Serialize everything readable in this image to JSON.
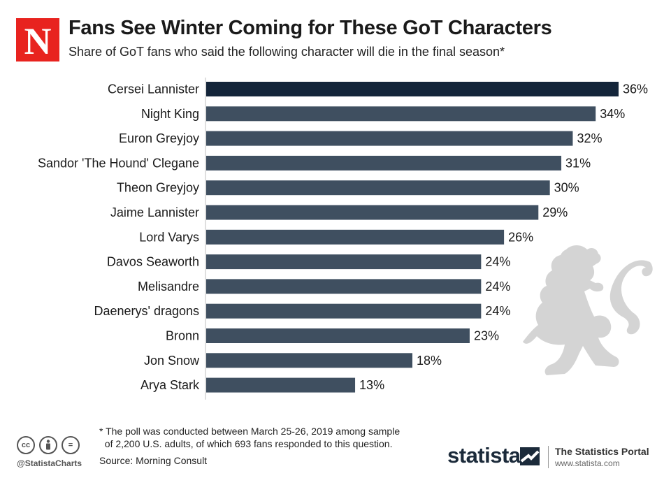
{
  "header": {
    "logo_letter": "N",
    "title": "Fans See Winter Coming for These GoT Characters",
    "subtitle": "Share of GoT fans who said the following character will die in the final season*"
  },
  "chart_data": {
    "type": "bar",
    "orientation": "horizontal",
    "title": "Fans See Winter Coming for These GoT Characters",
    "subtitle": "Share of GoT fans who said the following character will die in the final season*",
    "categories": [
      "Cersei Lannister",
      "Night King",
      "Euron Greyjoy",
      "Sandor 'The Hound' Clegane",
      "Theon Greyjoy",
      "Jaime Lannister",
      "Lord Varys",
      "Davos Seaworth",
      "Melisandre",
      "Daenerys' dragons",
      "Bronn",
      "Jon Snow",
      "Arya Stark"
    ],
    "values": [
      36,
      34,
      32,
      31,
      30,
      29,
      26,
      24,
      24,
      24,
      23,
      18,
      13
    ],
    "value_labels": [
      "36%",
      "34%",
      "32%",
      "31%",
      "30%",
      "29%",
      "26%",
      "24%",
      "24%",
      "24%",
      "23%",
      "18%",
      "13%"
    ],
    "unit": "%",
    "xlim": [
      0,
      36
    ],
    "highlight_index": 0,
    "colors": {
      "highlight": "#14253a",
      "bar": "#3f4f60",
      "axis": "#bfbfbf"
    }
  },
  "footer": {
    "footnote": "* The poll was conducted between March 25-26, 2019 among sample\n  of 2,200 U.S. adults, of which 693 fans responded to this question.",
    "source": "Source: Morning Consult",
    "cc_icons": [
      "cc",
      "by",
      "="
    ],
    "handle": "@StatistaCharts",
    "brand": "statista",
    "portal": "The Statistics Portal",
    "portal_url": "www.statista.com"
  },
  "colors": {
    "logo_red": "#e8231f",
    "lion_gray": "#d4d4d4"
  }
}
